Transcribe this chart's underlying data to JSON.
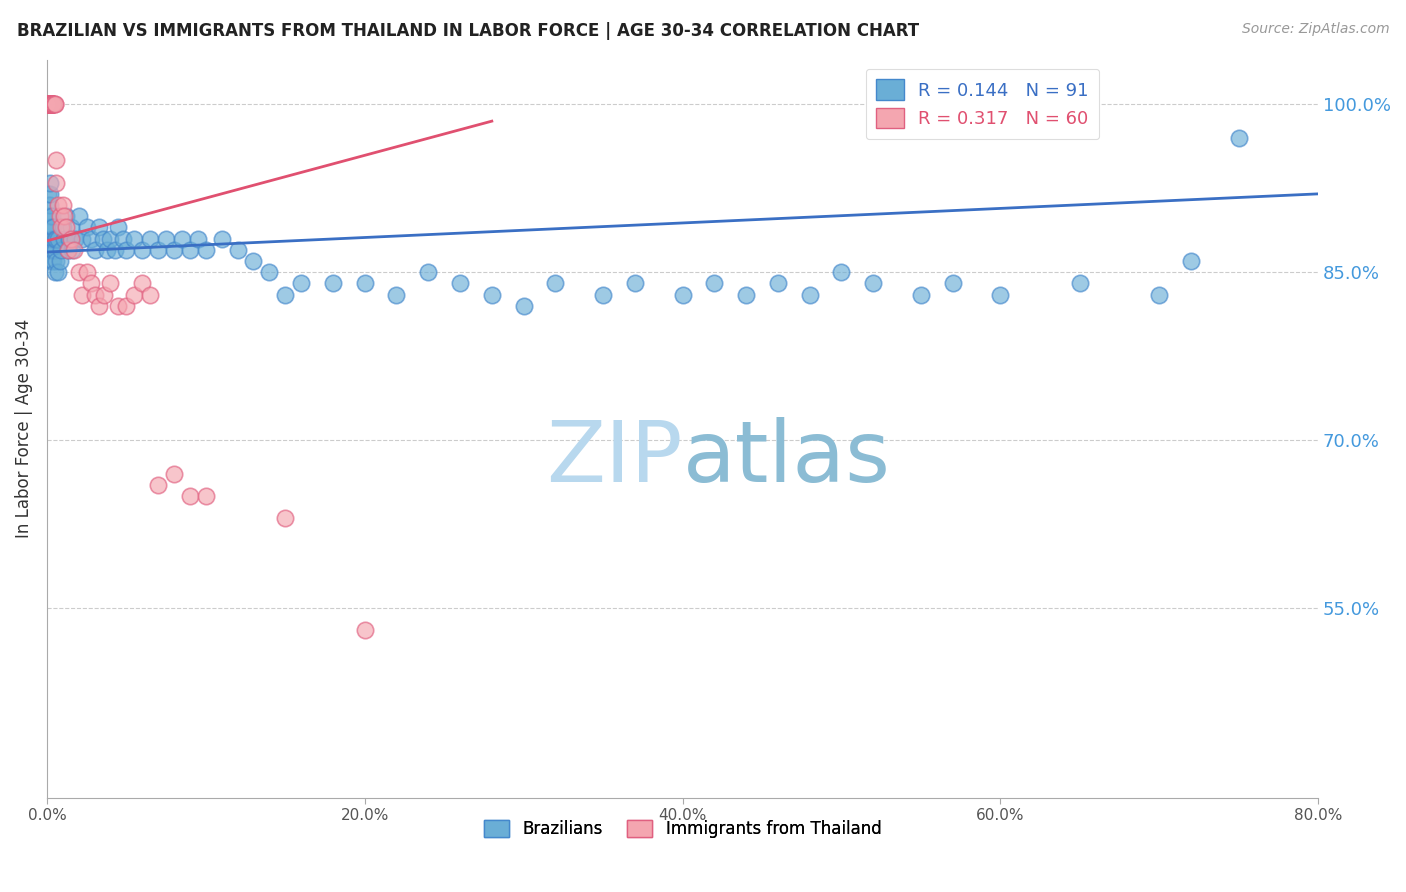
{
  "title": "BRAZILIAN VS IMMIGRANTS FROM THAILAND IN LABOR FORCE | AGE 30-34 CORRELATION CHART",
  "source": "Source: ZipAtlas.com",
  "ylabel": "In Labor Force | Age 30-34",
  "xlabel_ticks": [
    "0.0%",
    "20.0%",
    "40.0%",
    "60.0%",
    "80.0%"
  ],
  "xlabel_vals": [
    0.0,
    0.2,
    0.4,
    0.6,
    0.8
  ],
  "ylabel_ticks_right": [
    "100.0%",
    "85.0%",
    "70.0%",
    "55.0%"
  ],
  "ylabel_vals_right": [
    1.0,
    0.85,
    0.7,
    0.55
  ],
  "xmin": 0.0,
  "xmax": 0.8,
  "ymin": 0.38,
  "ymax": 1.04,
  "blue_R": 0.144,
  "blue_N": 91,
  "pink_R": 0.317,
  "pink_N": 60,
  "blue_color": "#6aaed6",
  "pink_color": "#f4a6b0",
  "blue_edge_color": "#4488cc",
  "pink_edge_color": "#e06080",
  "blue_line_color": "#3a6fc4",
  "pink_line_color": "#e05070",
  "grid_color": "#cccccc",
  "watermark_color": "#cce4f5",
  "legend_label_blue": "Brazilians",
  "legend_label_pink": "Immigrants from Thailand",
  "title_color": "#222222",
  "right_axis_color": "#4499dd",
  "blue_x": [
    0.001,
    0.001,
    0.001,
    0.001,
    0.001,
    0.002,
    0.002,
    0.002,
    0.002,
    0.002,
    0.002,
    0.002,
    0.003,
    0.003,
    0.003,
    0.003,
    0.003,
    0.004,
    0.004,
    0.004,
    0.004,
    0.005,
    0.005,
    0.005,
    0.006,
    0.006,
    0.007,
    0.007,
    0.008,
    0.009,
    0.01,
    0.011,
    0.012,
    0.013,
    0.014,
    0.015,
    0.016,
    0.018,
    0.02,
    0.022,
    0.025,
    0.028,
    0.03,
    0.033,
    0.035,
    0.038,
    0.04,
    0.043,
    0.045,
    0.048,
    0.05,
    0.055,
    0.06,
    0.065,
    0.07,
    0.075,
    0.08,
    0.085,
    0.09,
    0.095,
    0.1,
    0.11,
    0.12,
    0.13,
    0.14,
    0.15,
    0.16,
    0.18,
    0.2,
    0.22,
    0.24,
    0.26,
    0.28,
    0.3,
    0.32,
    0.35,
    0.37,
    0.4,
    0.42,
    0.44,
    0.46,
    0.48,
    0.5,
    0.52,
    0.55,
    0.57,
    0.6,
    0.65,
    0.7,
    0.72,
    0.75
  ],
  "blue_y": [
    0.88,
    0.89,
    0.9,
    0.91,
    0.92,
    0.87,
    0.88,
    0.89,
    0.9,
    0.91,
    0.92,
    0.93,
    0.86,
    0.87,
    0.88,
    0.89,
    0.9,
    0.86,
    0.87,
    0.88,
    0.89,
    0.85,
    0.87,
    0.88,
    0.86,
    0.88,
    0.85,
    0.88,
    0.86,
    0.87,
    0.89,
    0.88,
    0.9,
    0.87,
    0.88,
    0.89,
    0.87,
    0.88,
    0.9,
    0.88,
    0.89,
    0.88,
    0.87,
    0.89,
    0.88,
    0.87,
    0.88,
    0.87,
    0.89,
    0.88,
    0.87,
    0.88,
    0.87,
    0.88,
    0.87,
    0.88,
    0.87,
    0.88,
    0.87,
    0.88,
    0.87,
    0.88,
    0.87,
    0.86,
    0.85,
    0.83,
    0.84,
    0.84,
    0.84,
    0.83,
    0.85,
    0.84,
    0.83,
    0.82,
    0.84,
    0.83,
    0.84,
    0.83,
    0.84,
    0.83,
    0.84,
    0.83,
    0.85,
    0.84,
    0.83,
    0.84,
    0.83,
    0.84,
    0.83,
    0.86,
    0.97
  ],
  "pink_x": [
    0.001,
    0.001,
    0.001,
    0.001,
    0.001,
    0.001,
    0.001,
    0.001,
    0.001,
    0.001,
    0.001,
    0.001,
    0.002,
    0.002,
    0.002,
    0.002,
    0.002,
    0.002,
    0.002,
    0.003,
    0.003,
    0.003,
    0.003,
    0.003,
    0.003,
    0.004,
    0.004,
    0.004,
    0.005,
    0.005,
    0.006,
    0.006,
    0.007,
    0.008,
    0.009,
    0.01,
    0.011,
    0.012,
    0.013,
    0.015,
    0.017,
    0.02,
    0.022,
    0.025,
    0.028,
    0.03,
    0.033,
    0.036,
    0.04,
    0.045,
    0.05,
    0.055,
    0.06,
    0.065,
    0.07,
    0.08,
    0.09,
    0.1,
    0.15,
    0.2
  ],
  "pink_y": [
    1.0,
    1.0,
    1.0,
    1.0,
    1.0,
    1.0,
    1.0,
    1.0,
    1.0,
    1.0,
    1.0,
    1.0,
    1.0,
    1.0,
    1.0,
    1.0,
    1.0,
    1.0,
    1.0,
    1.0,
    1.0,
    1.0,
    1.0,
    1.0,
    1.0,
    1.0,
    1.0,
    1.0,
    1.0,
    1.0,
    0.95,
    0.93,
    0.91,
    0.9,
    0.89,
    0.91,
    0.9,
    0.89,
    0.87,
    0.88,
    0.87,
    0.85,
    0.83,
    0.85,
    0.84,
    0.83,
    0.82,
    0.83,
    0.84,
    0.82,
    0.82,
    0.83,
    0.84,
    0.83,
    0.66,
    0.67,
    0.65,
    0.65,
    0.63,
    0.53
  ],
  "blue_line_x0": 0.0,
  "blue_line_x1": 0.8,
  "blue_line_y0": 0.868,
  "blue_line_y1": 0.92,
  "pink_line_x0": 0.0,
  "pink_line_x1": 0.28,
  "pink_line_y0": 0.878,
  "pink_line_y1": 0.985
}
